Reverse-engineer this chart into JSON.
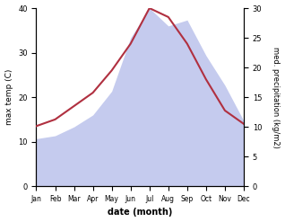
{
  "months": [
    "Jan",
    "Feb",
    "Mar",
    "Apr",
    "May",
    "Jun",
    "Jul",
    "Aug",
    "Sep",
    "Oct",
    "Nov",
    "Dec"
  ],
  "max_temp": [
    13.5,
    15,
    18,
    21,
    26,
    32,
    40,
    38,
    32,
    24,
    17,
    14
  ],
  "precipitation": [
    8,
    8.5,
    10,
    12,
    16,
    25,
    30,
    27,
    28,
    22,
    17,
    11
  ],
  "temp_color": "#b03040",
  "precip_fill_color": "#c5cbee",
  "precip_edge_color": "#c5cbee",
  "temp_ylim": [
    0,
    40
  ],
  "precip_ylim": [
    0,
    30
  ],
  "temp_yticks": [
    0,
    10,
    20,
    30,
    40
  ],
  "precip_yticks": [
    0,
    5,
    10,
    15,
    20,
    25,
    30
  ],
  "xlabel": "date (month)",
  "ylabel_left": "max temp (C)",
  "ylabel_right": "med. precipitation (kg/m2)",
  "background_color": "#ffffff"
}
